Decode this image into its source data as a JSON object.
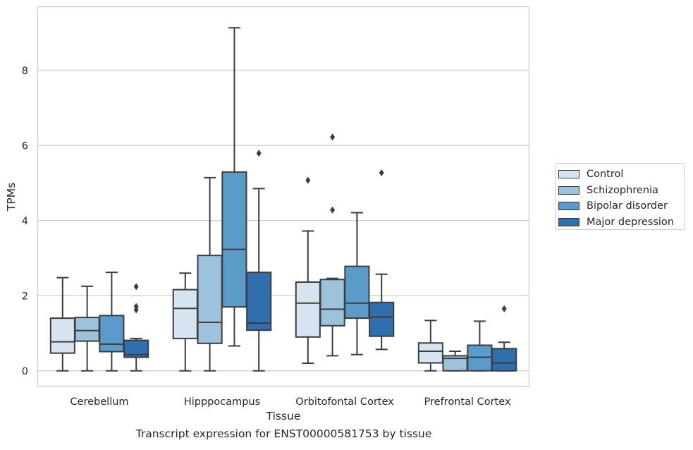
{
  "caption": "Transcript expression for ENST00000581753 by tissue",
  "chart_data": {
    "type": "box",
    "xlabel": "Tissue",
    "ylabel": "TPMs",
    "ylim": [
      -0.4,
      9.7
    ],
    "yticks": [
      0,
      2,
      4,
      6,
      8
    ],
    "grid": "horizontal",
    "legend_position": "right",
    "categories": [
      "Cerebellum",
      "Hipppocampus",
      "Orbitofontal Cortex",
      "Prefrontal Cortex"
    ],
    "series": [
      {
        "name": "Control",
        "color": "#d6e4f2",
        "boxes": [
          {
            "whislo": 0.0,
            "q1": 0.47,
            "med": 0.77,
            "q3": 1.4,
            "whishi": 2.48,
            "fliers": []
          },
          {
            "whislo": 0.0,
            "q1": 0.86,
            "med": 1.66,
            "q3": 2.16,
            "whishi": 2.6,
            "fliers": []
          },
          {
            "whislo": 0.2,
            "q1": 0.9,
            "med": 1.8,
            "q3": 2.36,
            "whishi": 3.72,
            "fliers": [
              5.07
            ]
          },
          {
            "whislo": 0.0,
            "q1": 0.21,
            "med": 0.52,
            "q3": 0.74,
            "whishi": 1.34,
            "fliers": []
          }
        ]
      },
      {
        "name": "Schizophrenia",
        "color": "#9dc2dc",
        "boxes": [
          {
            "whislo": 0.0,
            "q1": 0.79,
            "med": 1.07,
            "q3": 1.42,
            "whishi": 2.25,
            "fliers": []
          },
          {
            "whislo": 0.0,
            "q1": 0.73,
            "med": 1.29,
            "q3": 3.07,
            "whishi": 5.14,
            "fliers": []
          },
          {
            "whislo": 0.4,
            "q1": 1.2,
            "med": 1.64,
            "q3": 2.43,
            "whishi": 2.46,
            "fliers": [
              4.28,
              6.22
            ]
          },
          {
            "whislo": 0.0,
            "q1": 0.0,
            "med": 0.33,
            "q3": 0.4,
            "whishi": 0.52,
            "fliers": []
          }
        ]
      },
      {
        "name": "Bipolar disorder",
        "color": "#5a9bc9",
        "boxes": [
          {
            "whislo": 0.0,
            "q1": 0.51,
            "med": 0.71,
            "q3": 1.47,
            "whishi": 2.62,
            "fliers": []
          },
          {
            "whislo": 0.66,
            "q1": 1.7,
            "med": 3.23,
            "q3": 5.29,
            "whishi": 9.13,
            "fliers": []
          },
          {
            "whislo": 0.43,
            "q1": 1.4,
            "med": 1.8,
            "q3": 2.78,
            "whishi": 4.21,
            "fliers": []
          },
          {
            "whislo": 0.0,
            "q1": 0.0,
            "med": 0.36,
            "q3": 0.68,
            "whishi": 1.32,
            "fliers": []
          }
        ]
      },
      {
        "name": "Major depression",
        "color": "#2f6fad",
        "boxes": [
          {
            "whislo": 0.0,
            "q1": 0.36,
            "med": 0.43,
            "q3": 0.81,
            "whishi": 0.86,
            "fliers": [
              1.62,
              1.71,
              2.24
            ]
          },
          {
            "whislo": 0.0,
            "q1": 1.08,
            "med": 1.27,
            "q3": 2.62,
            "whishi": 4.85,
            "fliers": [
              5.79
            ]
          },
          {
            "whislo": 0.57,
            "q1": 0.92,
            "med": 1.43,
            "q3": 1.82,
            "whishi": 2.57,
            "fliers": [
              5.27
            ]
          },
          {
            "whislo": 0.0,
            "q1": 0.0,
            "med": 0.21,
            "q3": 0.59,
            "whishi": 0.76,
            "fliers": [
              1.65
            ]
          }
        ]
      }
    ]
  }
}
